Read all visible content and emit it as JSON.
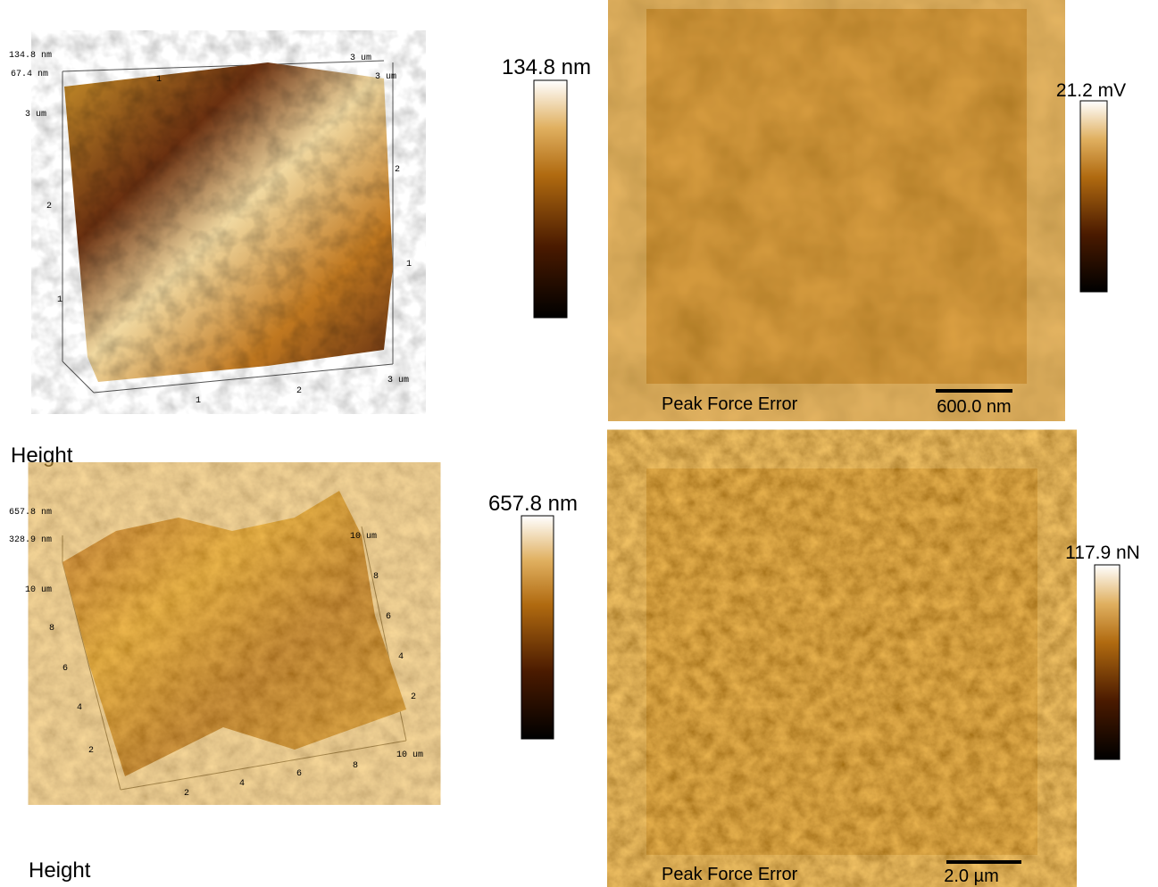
{
  "rows": [
    {
      "height_3d": {
        "z_max": "134.8 nm",
        "z_mid": "67.4 nm",
        "left_ticks": [
          "3 um",
          "2",
          "1"
        ],
        "bottom_ticks": [
          "1",
          "2",
          "3 um"
        ],
        "right_ticks": [
          "3 um",
          "2",
          "1"
        ],
        "top_ticks": [
          "1",
          "3 um"
        ],
        "caption": "Height"
      },
      "height_colorbar": "134.8 nm",
      "error_map": {
        "caption": "Peak Force Error",
        "scale_bar": "600.0 nm"
      },
      "error_colorbar": "21.2 mV"
    },
    {
      "height_3d": {
        "z_max": "657.8 nm",
        "z_mid": "328.9 nm",
        "left_ticks": [
          "10 um",
          "8",
          "6",
          "4",
          "2"
        ],
        "bottom_ticks": [
          "2",
          "4",
          "6",
          "8",
          "10 um"
        ],
        "right_ticks": [
          "10 um",
          "8",
          "6",
          "4",
          "2"
        ],
        "caption": "Height"
      },
      "height_colorbar": "657.8 nm",
      "error_map": {
        "caption": "Peak Force Error",
        "scale_bar": "2.0 µm"
      },
      "error_colorbar": "117.9 nN"
    }
  ]
}
